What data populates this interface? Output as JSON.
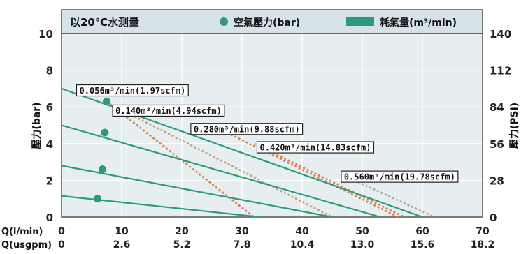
{
  "chart_data": {
    "type": "line",
    "title": "以20℃水測量",
    "legend": [
      {
        "name": "空氣壓力(bar)",
        "color": "#2e9a7a",
        "marker": "circle"
      },
      {
        "name": "耗氣量(m³/min)",
        "color": "#2e9a7a",
        "marker": "bar"
      }
    ],
    "legend_position": "top",
    "grid": true,
    "xlim": [
      0,
      70
    ],
    "ylim": [
      0,
      10
    ],
    "ylim_right": [
      0,
      140
    ],
    "x_ticks": [
      0,
      10,
      20,
      30,
      40,
      50,
      60,
      70
    ],
    "x_ticks_secondary": [
      "0",
      "2.6",
      "5.2",
      "7.8",
      "10.4",
      "13.0",
      "15.6",
      "18.2"
    ],
    "x_row_labels": [
      "Q(l/min)",
      "Q(usgpm)"
    ],
    "y_ticks": [
      0,
      2,
      4,
      6,
      8,
      10
    ],
    "y_ticks_right": [
      0,
      28,
      56,
      84,
      112,
      140
    ],
    "ylabel": "壓力(bar)",
    "ylabel_right": "壓力(PSI)",
    "pressure_series": [
      {
        "x": [
          0,
          60
        ],
        "y": [
          7.0,
          0
        ]
      },
      {
        "x": [
          0,
          53
        ],
        "y": [
          5.0,
          0
        ]
      },
      {
        "x": [
          0,
          45
        ],
        "y": [
          2.8,
          0
        ]
      },
      {
        "x": [
          0,
          33
        ],
        "y": [
          1.15,
          0
        ]
      }
    ],
    "pressure_points": [
      {
        "x": 7.5,
        "y": 6.3
      },
      {
        "x": 7.2,
        "y": 4.6
      },
      {
        "x": 6.8,
        "y": 2.6
      },
      {
        "x": 6.0,
        "y": 1.0
      }
    ],
    "consumption_series": [
      {
        "label": "0.056m³/min(1.97scfm)",
        "x": [
          7.5,
          32
        ],
        "y": [
          6.3,
          0
        ],
        "color": "#d9804a"
      },
      {
        "label": "0.140m³/min(4.94scfm)",
        "x": [
          9,
          45
        ],
        "y": [
          6.0,
          0
        ],
        "color": "#c9a070"
      },
      {
        "label": "0.280m³/min(9.88scfm)",
        "x": [
          25,
          56
        ],
        "y": [
          5.0,
          0
        ],
        "color": "#d9804a"
      },
      {
        "label": "0.420m³/min(14.83scfm)",
        "x": [
          32,
          57
        ],
        "y": [
          4.0,
          0
        ],
        "color": "#d9804a"
      },
      {
        "label": "0.560m³/min(19.78scfm)",
        "x": [
          48,
          62
        ],
        "y": [
          2.1,
          0
        ],
        "color": "#b0a8a0"
      }
    ],
    "annotation_positions": [
      {
        "x": 2.5,
        "y": 6.9
      },
      {
        "x": 8.5,
        "y": 5.8
      },
      {
        "x": 21.5,
        "y": 4.8
      },
      {
        "x": 32.5,
        "y": 3.8
      },
      {
        "x": 46.5,
        "y": 2.2
      }
    ]
  }
}
